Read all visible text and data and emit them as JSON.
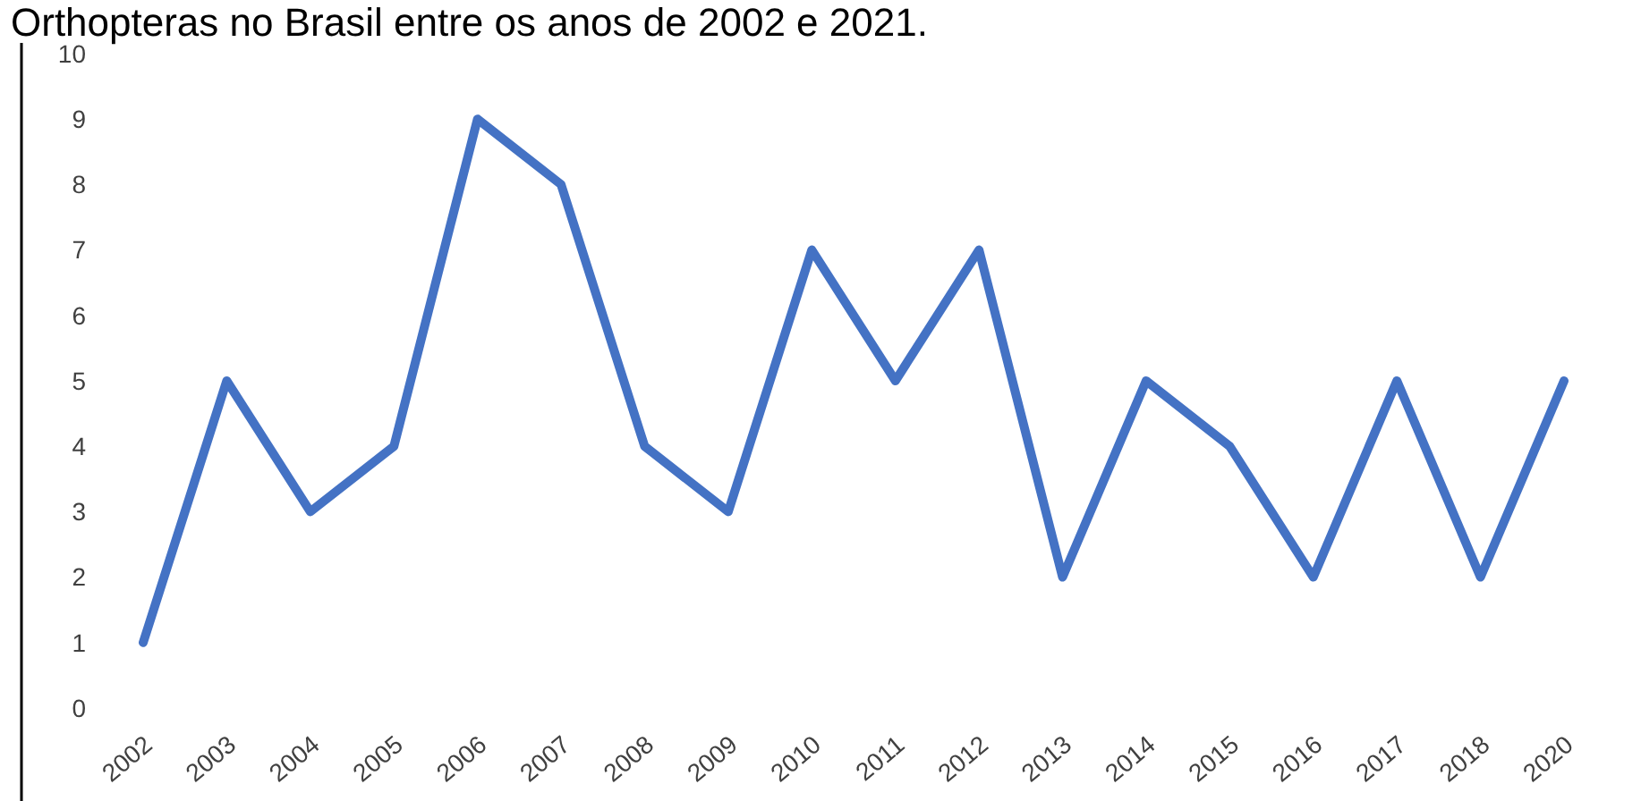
{
  "chart_data": {
    "type": "line",
    "title": "Orthopteras no Brasil entre os anos de 2002 e 2021.",
    "categories": [
      "2002",
      "2003",
      "2004",
      "2005",
      "2006",
      "2007",
      "2008",
      "2009",
      "2010",
      "2011",
      "2012",
      "2013",
      "2014",
      "2015",
      "2016",
      "2017",
      "2018",
      "2020"
    ],
    "series": [
      {
        "color": "#4472c4",
        "values": [
          1,
          5,
          3,
          4,
          9,
          8,
          4,
          3,
          7,
          5,
          7,
          2,
          5,
          4,
          2,
          5,
          2,
          5
        ]
      }
    ],
    "ylim": [
      0,
      10
    ],
    "yticks": [
      0,
      1,
      2,
      3,
      4,
      5,
      6,
      7,
      8,
      9,
      10
    ],
    "grid": false,
    "marker": "none",
    "line_style": "solid"
  }
}
